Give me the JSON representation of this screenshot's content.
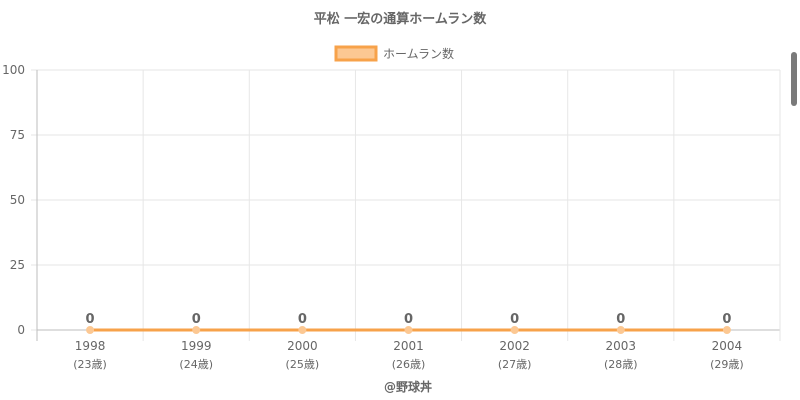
{
  "chart_data": {
    "type": "line",
    "title": "平松 一宏の通算ホームラン数",
    "categories": [
      "1998",
      "1999",
      "2000",
      "2001",
      "2002",
      "2003",
      "2004"
    ],
    "category_sublabels": [
      "(23歳)",
      "(24歳)",
      "(25歳)",
      "(26歳)",
      "(27歳)",
      "(28歳)",
      "(29歳)"
    ],
    "series": [
      {
        "name": "ホームラン数",
        "values": [
          0,
          0,
          0,
          0,
          0,
          0,
          0
        ]
      }
    ],
    "data_labels": [
      "0",
      "0",
      "0",
      "0",
      "0",
      "0",
      "0"
    ],
    "ylim": [
      0,
      100
    ],
    "y_ticks": [
      0,
      25,
      50,
      75,
      100
    ],
    "y_tick_labels": [
      "0",
      "25",
      "50",
      "75",
      "100"
    ],
    "grid": true,
    "legend_position": "top-center",
    "colors": {
      "line": "#f7a24a",
      "legend_fill": "#fcc893",
      "point": "#fcc893",
      "grid": "#e6e6e6",
      "axis": "#bdbdbd"
    }
  },
  "credit": "@野球丼"
}
